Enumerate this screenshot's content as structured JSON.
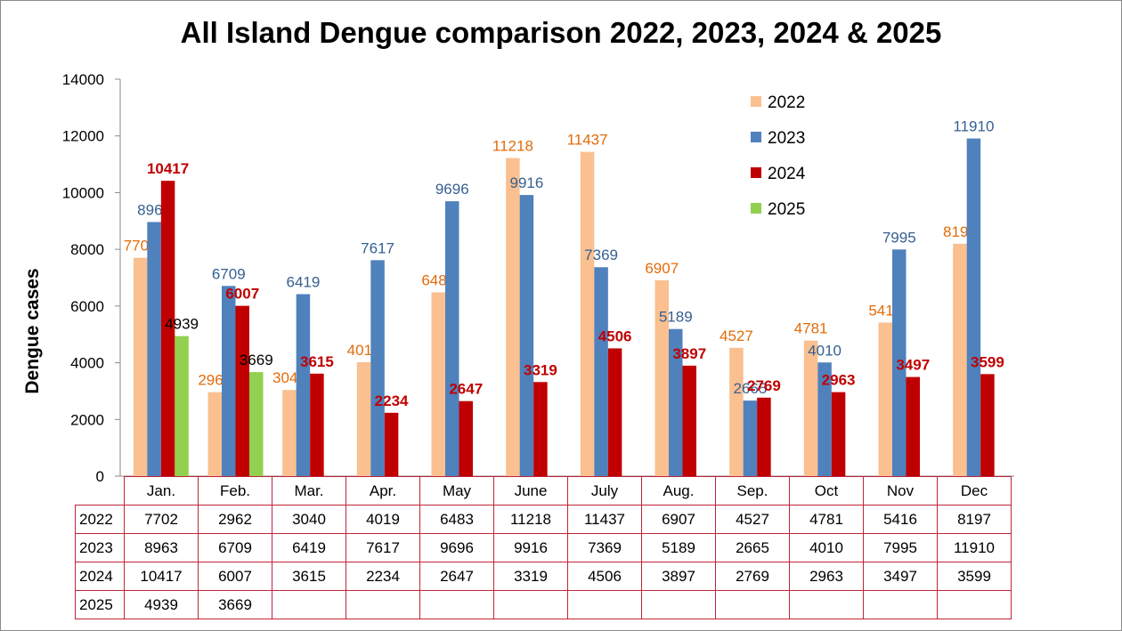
{
  "chart_data": {
    "type": "bar",
    "title": "All Island Dengue comparison 2022, 2023, 2024 & 2025",
    "xlabel": "",
    "ylabel": "Dengue cases",
    "ylim": [
      0,
      14000
    ],
    "yticks": [
      0,
      2000,
      4000,
      6000,
      8000,
      10000,
      12000,
      14000
    ],
    "grid": false,
    "legend": "top-right",
    "categories": [
      "Jan.",
      "Feb.",
      "Mar.",
      "Apr.",
      "May",
      "June",
      "July",
      "Aug.",
      "Sep.",
      "Oct",
      "Nov",
      "Dec"
    ],
    "series": [
      {
        "name": "2022",
        "color": "#fac090",
        "label_color": "#e36c09",
        "label_bold": false,
        "values": [
          7702,
          2962,
          3040,
          4019,
          6483,
          11218,
          11437,
          6907,
          4527,
          4781,
          5416,
          8197
        ]
      },
      {
        "name": "2023",
        "color": "#4f81bd",
        "label_color": "#366092",
        "label_bold": false,
        "values": [
          8963,
          6709,
          6419,
          7617,
          9696,
          9916,
          7369,
          5189,
          2665,
          4010,
          7995,
          11910
        ]
      },
      {
        "name": "2024",
        "color": "#c00000",
        "label_color": "#c00000",
        "label_bold": true,
        "values": [
          10417,
          6007,
          3615,
          2234,
          2647,
          3319,
          4506,
          3897,
          2769,
          2963,
          3497,
          3599
        ]
      },
      {
        "name": "2025",
        "color": "#92d050",
        "label_color": "#000000",
        "label_bold": false,
        "values": [
          4939,
          3669,
          null,
          null,
          null,
          null,
          null,
          null,
          null,
          null,
          null,
          null
        ]
      }
    ],
    "table_rows": [
      {
        "label": "2022",
        "cells": [
          "7702",
          "2962",
          "3040",
          "4019",
          "6483",
          "11218",
          "11437",
          "6907",
          "4527",
          "4781",
          "5416",
          "8197"
        ]
      },
      {
        "label": "2023",
        "cells": [
          "8963",
          "6709",
          "6419",
          "7617",
          "9696",
          "9916",
          "7369",
          "5189",
          "2665",
          "4010",
          "7995",
          "11910"
        ]
      },
      {
        "label": "2024",
        "cells": [
          "10417",
          "6007",
          "3615",
          "2234",
          "2647",
          "3319",
          "4506",
          "3897",
          "2769",
          "2963",
          "3497",
          "3599"
        ]
      },
      {
        "label": "2025",
        "cells": [
          "4939",
          "3669",
          "",
          "",
          "",
          "",
          "",
          "",
          "",
          "",
          "",
          ""
        ]
      }
    ]
  }
}
